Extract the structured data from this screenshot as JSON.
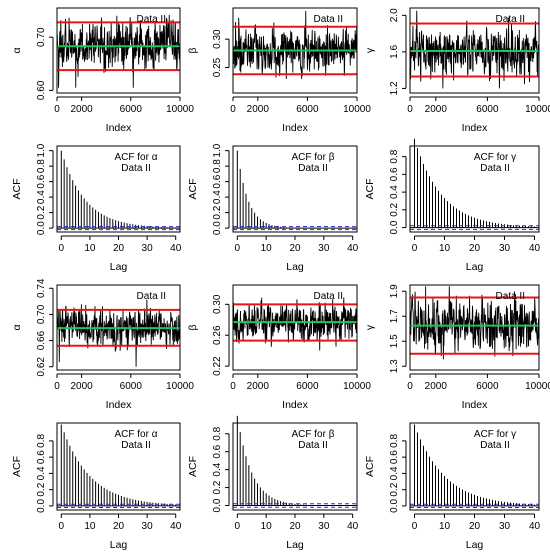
{
  "chart_data": [
    {
      "type": "line",
      "kind": "trace",
      "annotation": "Data II",
      "xlabel": "Index",
      "ylabel": "α",
      "x_ticks": [
        "0",
        "2000",
        "6000",
        "10000"
      ],
      "y_ticks": [
        "0.60",
        "0.70"
      ],
      "xlim": [
        0,
        10000
      ],
      "ylim": [
        0.595,
        0.755
      ],
      "x_tick_values": [
        0,
        2000,
        6000,
        10000
      ],
      "y_tick_values": [
        0.6,
        0.7
      ],
      "red_lines": [
        0.728,
        0.638
      ],
      "green_line": 0.683,
      "series_center": 0.683,
      "series_spread": 0.03,
      "series_min": 0.605,
      "series_max": 0.745,
      "colors": {
        "series": "#000000",
        "bounds": "#e8141b",
        "mean": "#22c35a"
      }
    },
    {
      "type": "line",
      "kind": "trace",
      "annotation": "Data II",
      "xlabel": "Index",
      "ylabel": "β",
      "x_ticks": [
        "0",
        "2000",
        "6000",
        "10000"
      ],
      "y_ticks": [
        "0.25",
        "0.30"
      ],
      "xlim": [
        0,
        10000
      ],
      "ylim": [
        0.205,
        0.355
      ],
      "x_tick_values": [
        0,
        2000,
        6000,
        10000
      ],
      "y_tick_values": [
        0.25,
        0.3
      ],
      "red_lines": [
        0.322,
        0.238
      ],
      "green_line": 0.28,
      "series_center": 0.28,
      "series_spread": 0.025,
      "series_min": 0.215,
      "series_max": 0.35,
      "colors": {
        "series": "#000000",
        "bounds": "#e8141b",
        "mean": "#22c35a"
      }
    },
    {
      "type": "line",
      "kind": "trace",
      "annotation": "Data II",
      "xlabel": "Index",
      "ylabel": "γ",
      "x_ticks": [
        "0",
        "2000",
        "6000",
        "10000"
      ],
      "y_ticks": [
        "1.2",
        "1.6",
        "2.0"
      ],
      "xlim": [
        0,
        10000
      ],
      "ylim": [
        1.15,
        2.08
      ],
      "x_tick_values": [
        0,
        2000,
        6000,
        10000
      ],
      "y_tick_values": [
        1.2,
        1.6,
        2.0
      ],
      "red_lines": [
        1.91,
        1.33
      ],
      "green_line": 1.61,
      "series_center": 1.61,
      "series_spread": 0.16,
      "series_min": 1.2,
      "series_max": 2.05,
      "colors": {
        "series": "#000000",
        "bounds": "#e8141b",
        "mean": "#22c35a"
      }
    },
    {
      "type": "bar",
      "kind": "acf",
      "annotation": [
        "ACF for α",
        "Data II"
      ],
      "xlabel": "Lag",
      "ylabel": "ACF",
      "x_ticks": [
        "0",
        "10",
        "20",
        "30",
        "40"
      ],
      "y_ticks": [
        "0.0",
        "0.2",
        "0.4",
        "0.6",
        "0.8",
        "1.0"
      ],
      "xlim": [
        -1.5,
        41.5
      ],
      "ylim": [
        -0.05,
        1.06
      ],
      "x_tick_values": [
        0,
        10,
        20,
        30,
        40
      ],
      "y_tick_values": [
        0,
        0.2,
        0.4,
        0.6,
        0.8,
        1.0
      ],
      "max_lag": 40,
      "decay_rate": 0.12,
      "ci": 0.02,
      "colors": {
        "bars": "#000000",
        "ci": "#2b2bd9"
      }
    },
    {
      "type": "bar",
      "kind": "acf",
      "annotation": [
        "ACF for β",
        "Data II"
      ],
      "xlabel": "Lag",
      "ylabel": "ACF",
      "x_ticks": [
        "0",
        "10",
        "20",
        "30",
        "40"
      ],
      "y_ticks": [
        "0.0",
        "0.2",
        "0.4",
        "0.6",
        "0.8",
        "1.0"
      ],
      "xlim": [
        -1.5,
        41.5
      ],
      "ylim": [
        -0.05,
        1.06
      ],
      "x_tick_values": [
        0,
        10,
        20,
        30,
        40
      ],
      "y_tick_values": [
        0,
        0.2,
        0.4,
        0.6,
        0.8,
        1.0
      ],
      "max_lag": 40,
      "decay_rate": 0.27,
      "ci": 0.02,
      "colors": {
        "bars": "#000000",
        "ci": "#2b2bd9"
      }
    },
    {
      "type": "bar",
      "kind": "acf",
      "annotation": [
        "ACF for γ",
        "Data II"
      ],
      "xlabel": "Lag",
      "ylabel": "ACF",
      "x_ticks": [
        "0",
        "10",
        "20",
        "30",
        "40"
      ],
      "y_ticks": [
        "0.0",
        "0.2",
        "0.4",
        "0.6",
        "0.8"
      ],
      "xlim": [
        -1.5,
        41.5
      ],
      "ylim": [
        -0.05,
        0.92
      ],
      "x_tick_values": [
        0,
        10,
        20,
        30,
        40
      ],
      "y_tick_values": [
        0,
        0.2,
        0.4,
        0.6,
        0.8
      ],
      "max_lag": 40,
      "decay_rate": 0.11,
      "ci": 0.02,
      "colors": {
        "bars": "#000000",
        "ci": "#2b2bd9"
      }
    },
    {
      "type": "line",
      "kind": "trace",
      "annotation": "Data II",
      "xlabel": "Index",
      "ylabel": "α",
      "x_ticks": [
        "0",
        "2000",
        "6000",
        "10000"
      ],
      "y_ticks": [
        "0.62",
        "0.66",
        "0.70",
        "0.74"
      ],
      "xlim": [
        0,
        10000
      ],
      "ylim": [
        0.615,
        0.745
      ],
      "x_tick_values": [
        0,
        2000,
        6000,
        10000
      ],
      "y_tick_values": [
        0.62,
        0.66,
        0.7,
        0.74
      ],
      "red_lines": [
        0.707,
        0.652
      ],
      "green_line": 0.679,
      "series_center": 0.679,
      "series_spread": 0.018,
      "series_min": 0.62,
      "series_max": 0.74,
      "colors": {
        "series": "#000000",
        "bounds": "#e8141b",
        "mean": "#22c35a"
      }
    },
    {
      "type": "line",
      "kind": "trace",
      "annotation": "Data II",
      "xlabel": "Index",
      "ylabel": "β",
      "x_ticks": [
        "0",
        "2000",
        "6000",
        "10000"
      ],
      "y_ticks": [
        "0.22",
        "0.26",
        "0.30"
      ],
      "xlim": [
        0,
        10000
      ],
      "ylim": [
        0.215,
        0.325
      ],
      "x_tick_values": [
        0,
        2000,
        6000,
        10000
      ],
      "y_tick_values": [
        0.22,
        0.26,
        0.3
      ],
      "red_lines": [
        0.3,
        0.253
      ],
      "green_line": 0.277,
      "series_center": 0.277,
      "series_spread": 0.015,
      "series_min": 0.225,
      "series_max": 0.32,
      "colors": {
        "series": "#000000",
        "bounds": "#e8141b",
        "mean": "#22c35a"
      }
    },
    {
      "type": "line",
      "kind": "trace",
      "annotation": "Data II",
      "xlabel": "Index",
      "ylabel": "γ",
      "x_ticks": [
        "0",
        "2000",
        "6000",
        "10000"
      ],
      "y_ticks": [
        "1.3",
        "1.5",
        "1.7",
        "1.9"
      ],
      "xlim": [
        0,
        10000
      ],
      "ylim": [
        1.27,
        1.95
      ],
      "x_tick_values": [
        0,
        2000,
        6000,
        10000
      ],
      "y_tick_values": [
        1.3,
        1.5,
        1.7,
        1.9
      ],
      "red_lines": [
        1.85,
        1.4
      ],
      "green_line": 1.625,
      "series_center": 1.625,
      "series_spread": 0.13,
      "series_min": 1.3,
      "series_max": 1.94,
      "colors": {
        "series": "#000000",
        "bounds": "#e8141b",
        "mean": "#22c35a"
      }
    },
    {
      "type": "bar",
      "kind": "acf",
      "annotation": [
        "ACF for α",
        "Data II"
      ],
      "xlabel": "Lag",
      "ylabel": "ACF",
      "x_ticks": [
        "0",
        "10",
        "20",
        "30",
        "40"
      ],
      "y_ticks": [
        "0.0",
        "0.2",
        "0.4",
        "0.6",
        "0.8"
      ],
      "xlim": [
        -1.5,
        41.5
      ],
      "ylim": [
        -0.05,
        1.02
      ],
      "x_tick_values": [
        0,
        10,
        20,
        30,
        40
      ],
      "y_tick_values": [
        0,
        0.2,
        0.4,
        0.6,
        0.8
      ],
      "max_lag": 40,
      "decay_rate": 0.1,
      "ci": 0.02,
      "colors": {
        "bars": "#000000",
        "ci": "#2b2bd9"
      }
    },
    {
      "type": "bar",
      "kind": "acf",
      "annotation": [
        "ACF for β",
        "Data II"
      ],
      "xlabel": "Lag",
      "ylabel": "ACF",
      "x_ticks": [
        "0",
        "10",
        "20",
        "30",
        "40"
      ],
      "y_ticks": [
        "0.0",
        "0.2",
        "0.4",
        "0.6",
        "0.8"
      ],
      "xlim": [
        -1.5,
        41.5
      ],
      "ylim": [
        -0.05,
        0.92
      ],
      "x_tick_values": [
        0,
        10,
        20,
        30,
        40
      ],
      "y_tick_values": [
        0,
        0.2,
        0.4,
        0.6,
        0.8
      ],
      "max_lag": 40,
      "decay_rate": 0.2,
      "ci": 0.02,
      "colors": {
        "bars": "#000000",
        "ci": "#2b2bd9"
      }
    },
    {
      "type": "bar",
      "kind": "acf",
      "annotation": [
        "ACF for γ",
        "Data II"
      ],
      "xlabel": "Lag",
      "ylabel": "ACF",
      "x_ticks": [
        "0",
        "10",
        "20",
        "30",
        "40"
      ],
      "y_ticks": [
        "0.0",
        "0.2",
        "0.4",
        "0.6",
        "0.8"
      ],
      "xlim": [
        -1.5,
        41.5
      ],
      "ylim": [
        -0.05,
        1.02
      ],
      "x_tick_values": [
        0,
        10,
        20,
        30,
        40
      ],
      "y_tick_values": [
        0,
        0.2,
        0.4,
        0.6,
        0.8
      ],
      "max_lag": 40,
      "decay_rate": 0.1,
      "ci": 0.02,
      "colors": {
        "bars": "#000000",
        "ci": "#2b2bd9"
      }
    }
  ]
}
